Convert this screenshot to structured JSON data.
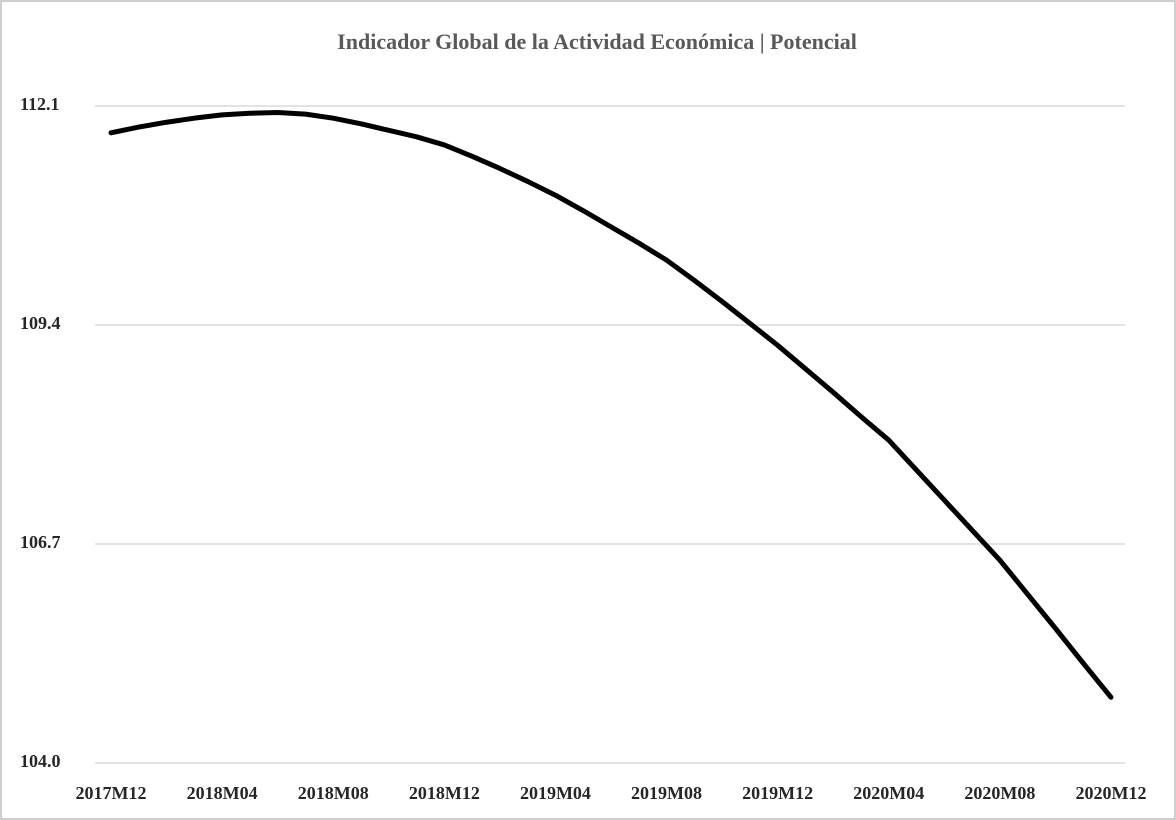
{
  "chart_data": {
    "type": "line",
    "title": "Indicador Global de la Actividad Económica | Potencial",
    "categories": [
      "2017M12",
      null,
      null,
      null,
      "2018M04",
      null,
      null,
      null,
      "2018M08",
      null,
      null,
      null,
      "2018M12",
      null,
      null,
      null,
      "2019M04",
      null,
      null,
      null,
      "2019M08",
      null,
      null,
      null,
      "2019M12",
      null,
      null,
      null,
      "2020M04",
      null,
      null,
      null,
      "2020M08",
      null,
      null,
      null,
      "2020M12"
    ],
    "values": [
      111.77,
      111.84,
      111.9,
      111.95,
      111.99,
      112.01,
      112.02,
      112.0,
      111.95,
      111.88,
      111.8,
      111.72,
      111.62,
      111.48,
      111.33,
      111.17,
      111.0,
      110.81,
      110.61,
      110.41,
      110.2,
      109.95,
      109.69,
      109.42,
      109.15,
      108.86,
      108.57,
      108.27,
      107.98,
      107.61,
      107.24,
      106.87,
      106.5,
      106.08,
      105.66,
      105.23,
      104.81
    ],
    "color": "#000000",
    "ylim": [
      104,
      112.1
    ],
    "yticks": [
      {
        "value": 104,
        "label": "104.0"
      },
      106.7,
      109.4,
      112.1
    ],
    "grid": true
  }
}
